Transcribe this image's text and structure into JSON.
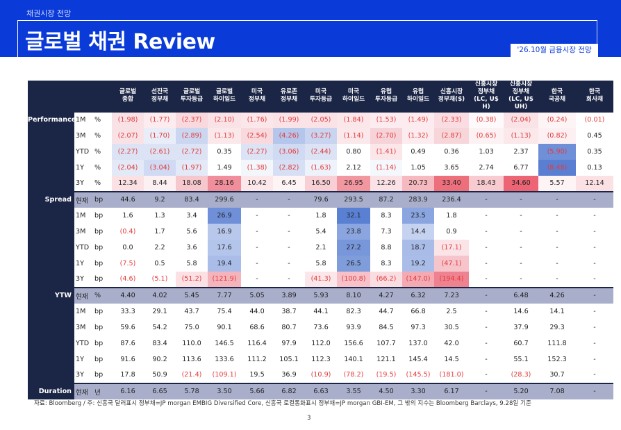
{
  "header": {
    "section": "채권시장 전망",
    "title": "글로벌 채권 Review",
    "date_badge": "'26.10월 금융시장 전망"
  },
  "table": {
    "columns": [
      "글로벌\n종합",
      "선진국\n정부채",
      "글로벌\n투자등급",
      "글로벌\n하이일드",
      "미국\n정부채",
      "유로존\n정부채",
      "미국\n투자등급",
      "미국\n하이일드",
      "유럽\n투자등급",
      "유럽\n하이일드",
      "신흥시장\n정부채($)",
      "신흥시장\n정부채\n(LC, U$ H)",
      "신흥시장\n정부채\n(LC, U$ UH)",
      "한국\n국공채",
      "한국\n회사채"
    ],
    "groups": [
      {
        "name": "Performance",
        "rows": [
          {
            "period": "1M",
            "unit": "%",
            "values": [
              "(1.98)",
              "(1.77)",
              "(2.37)",
              "(2.10)",
              "(1.76)",
              "(1.99)",
              "(2.05)",
              "(1.84)",
              "(1.53)",
              "(1.49)",
              "(2.33)",
              "(0.38)",
              "(2.04)",
              "(0.24)",
              "(0.01)"
            ]
          },
          {
            "period": "3M",
            "unit": "%",
            "values": [
              "(2.07)",
              "(1.70)",
              "(2.89)",
              "(1.13)",
              "(2.54)",
              "(4.26)",
              "(3.27)",
              "(1.14)",
              "(2.70)",
              "(1.32)",
              "(2.87)",
              "(0.65)",
              "(1.13)",
              "(0.82)",
              "0.45"
            ]
          },
          {
            "period": "YTD",
            "unit": "%",
            "values": [
              "(2.27)",
              "(2.61)",
              "(2.72)",
              "0.35",
              "(2.27)",
              "(3.06)",
              "(2.44)",
              "0.80",
              "(1.41)",
              "0.49",
              "0.36",
              "1.03",
              "2.37",
              "(5.90)",
              "0.35"
            ]
          },
          {
            "period": "1Y",
            "unit": "%",
            "values": [
              "(2.04)",
              "(3.04)",
              "(1.97)",
              "1.49",
              "(1.38)",
              "(2.82)",
              "(1.63)",
              "2.12",
              "(1.14)",
              "1.05",
              "3.65",
              "2.74",
              "6.77",
              "(8.48)",
              "0.13"
            ]
          },
          {
            "period": "3Y",
            "unit": "%",
            "values": [
              "12.34",
              "8.44",
              "18.08",
              "28.16",
              "10.42",
              "6.45",
              "16.50",
              "26.95",
              "12.26",
              "20.73",
              "33.40",
              "18.43",
              "34.60",
              "5.57",
              "12.14"
            ]
          }
        ]
      },
      {
        "name": "Spread",
        "rows": [
          {
            "period": "현재",
            "unit": "bp",
            "values": [
              "44.6",
              "9.2",
              "83.4",
              "299.6",
              "-",
              "-",
              "79.6",
              "293.5",
              "87.2",
              "283.9",
              "236.4",
              "-",
              "-",
              "-",
              "-"
            ]
          },
          {
            "period": "1M",
            "unit": "bp",
            "values": [
              "1.6",
              "1.3",
              "3.4",
              "26.9",
              "-",
              "-",
              "1.8",
              "32.1",
              "8.3",
              "23.5",
              "1.8",
              "-",
              "-",
              "-",
              "-"
            ]
          },
          {
            "period": "3M",
            "unit": "bp",
            "values": [
              "(0.4)",
              "1.7",
              "5.6",
              "16.9",
              "-",
              "-",
              "5.4",
              "23.8",
              "7.3",
              "14.4",
              "0.9",
              "-",
              "-",
              "-",
              "-"
            ]
          },
          {
            "period": "YTD",
            "unit": "bp",
            "values": [
              "0.0",
              "2.2",
              "3.6",
              "17.6",
              "-",
              "-",
              "2.1",
              "27.2",
              "8.8",
              "18.7",
              "(17.1)",
              "-",
              "-",
              "-",
              "-"
            ]
          },
          {
            "period": "1Y",
            "unit": "bp",
            "values": [
              "(7.5)",
              "0.5",
              "5.8",
              "19.4",
              "-",
              "-",
              "5.8",
              "26.5",
              "8.3",
              "19.2",
              "(47.1)",
              "-",
              "-",
              "-",
              "-"
            ]
          },
          {
            "period": "3Y",
            "unit": "bp",
            "values": [
              "(4.6)",
              "(5.1)",
              "(51.2)",
              "(121.9)",
              "-",
              "-",
              "(41.3)",
              "(100.8)",
              "(66.2)",
              "(147.0)",
              "(194.4)",
              "-",
              "-",
              "-",
              "-"
            ]
          }
        ]
      },
      {
        "name": "YTW",
        "rows": [
          {
            "period": "현재",
            "unit": "%",
            "values": [
              "4.40",
              "4.02",
              "5.45",
              "7.77",
              "5.05",
              "3.89",
              "5.93",
              "8.10",
              "4.27",
              "6.32",
              "7.23",
              "-",
              "6.48",
              "4.26",
              "-"
            ]
          },
          {
            "period": "1M",
            "unit": "bp",
            "values": [
              "33.3",
              "29.1",
              "43.7",
              "75.4",
              "44.0",
              "38.7",
              "44.1",
              "82.3",
              "44.7",
              "66.8",
              "2.5",
              "-",
              "14.6",
              "14.1",
              "-"
            ]
          },
          {
            "period": "3M",
            "unit": "bp",
            "values": [
              "59.6",
              "54.2",
              "75.0",
              "90.1",
              "68.6",
              "80.7",
              "73.6",
              "93.9",
              "84.5",
              "97.3",
              "30.5",
              "-",
              "37.9",
              "29.3",
              "-"
            ]
          },
          {
            "period": "YTD",
            "unit": "bp",
            "values": [
              "87.6",
              "83.4",
              "110.0",
              "146.5",
              "116.4",
              "97.9",
              "112.0",
              "156.6",
              "107.7",
              "137.0",
              "42.0",
              "-",
              "60.7",
              "111.8",
              "-"
            ]
          },
          {
            "period": "1Y",
            "unit": "bp",
            "values": [
              "91.6",
              "90.2",
              "113.6",
              "133.6",
              "111.2",
              "105.1",
              "112.3",
              "140.1",
              "121.1",
              "145.4",
              "14.5",
              "-",
              "55.1",
              "152.3",
              "-"
            ]
          },
          {
            "period": "3Y",
            "unit": "bp",
            "values": [
              "17.8",
              "50.9",
              "(21.4)",
              "(109.1)",
              "19.5",
              "36.9",
              "(10.9)",
              "(78.2)",
              "(19.5)",
              "(145.5)",
              "(181.0)",
              "-",
              "(28.3)",
              "30.7",
              "-"
            ]
          }
        ]
      },
      {
        "name": "Duration",
        "rows": [
          {
            "period": "현재",
            "unit": "년",
            "values": [
              "6.16",
              "6.65",
              "5.78",
              "3.50",
              "5.66",
              "6.82",
              "6.63",
              "3.55",
              "4.50",
              "3.30",
              "6.17",
              "-",
              "5.20",
              "7.08",
              "-"
            ]
          }
        ]
      }
    ],
    "cell_colors": {
      "Performance": [
        [
          "#f9e2e6",
          "#fcecef",
          "#f8d9de",
          "#fae3e7",
          "#fbe7ea",
          "#fae3e7",
          "#fae3e7",
          "#fbe7ea",
          "#fcecef",
          "#fcecef",
          "#f9dde2",
          "#fefafb",
          "#fae3e7",
          "#fdf4f5",
          "#ffffff"
        ],
        [
          "#f9e2e6",
          "#e8edf8",
          "#cbd6f0",
          "#fbe8eb",
          "#f8dade",
          "#b4c6ec",
          "#c8d4f0",
          "#fbe8eb",
          "#f6d3d8",
          "#fcecef",
          "#f7d6da",
          "#fdf2f3",
          "#fbe8eb",
          "#fdf0f2",
          "#ffffff"
        ],
        [
          "#dbe3f4",
          "#dbe3f4",
          "#dbe3f4",
          "#ffffff",
          "#dbe3f4",
          "#d0daf2",
          "#dbe3f4",
          "#ffffff",
          "#fbe7ea",
          "#ffffff",
          "#ffffff",
          "#ffffff",
          "#ffffff",
          "#6f8fd8",
          "#ffffff"
        ],
        [
          "#e3e9f6",
          "#d0daf2",
          "#e3e9f6",
          "#ffffff",
          "#f3f6fb",
          "#d6dff3",
          "#eef2fa",
          "#ffffff",
          "#f4f7fc",
          "#ffffff",
          "#ffffff",
          "#ffffff",
          "#ffffff",
          "#5a7fd2",
          "#ffffff"
        ],
        [
          "#fbe1e4",
          "#fdf0f2",
          "#f7c7ce",
          "#f18e9b",
          "#fce8eb",
          "#fef4f6",
          "#f8cfd5",
          "#f2969f",
          "#fbe2e6",
          "#f6b9c0",
          "#ee6f7c",
          "#f8cbd0",
          "#ed6474",
          "#fef4f6",
          "#fbe1e4"
        ]
      ],
      "Spread": [
        [
          "#a9aeca",
          "#a9aeca",
          "#a9aeca",
          "#a9aeca",
          "#a9aeca",
          "#a9aeca",
          "#a9aeca",
          "#a9aeca",
          "#a9aeca",
          "#a9aeca",
          "#a9aeca",
          "#a9aeca",
          "#a9aeca",
          "#a9aeca",
          "#a9aeca"
        ],
        [
          "#ffffff",
          "#ffffff",
          "#ffffff",
          "#6f90d8",
          "#ffffff",
          "#ffffff",
          "#ffffff",
          "#5a80d3",
          "#ffffff",
          "#8aa5df",
          "#ffffff",
          "#ffffff",
          "#ffffff",
          "#ffffff",
          "#ffffff"
        ],
        [
          "#ffffff",
          "#ffffff",
          "#ffffff",
          "#b8c8ec",
          "#ffffff",
          "#ffffff",
          "#ffffff",
          "#8aa5df",
          "#ffffff",
          "#c6d3f0",
          "#ffffff",
          "#ffffff",
          "#ffffff",
          "#ffffff",
          "#ffffff"
        ],
        [
          "#ffffff",
          "#ffffff",
          "#ffffff",
          "#b4c5eb",
          "#ffffff",
          "#ffffff",
          "#ffffff",
          "#7797da",
          "#ffffff",
          "#a9bce8",
          "#fbe4e7",
          "#ffffff",
          "#ffffff",
          "#ffffff",
          "#ffffff"
        ],
        [
          "#ffffff",
          "#ffffff",
          "#ffffff",
          "#aabde8",
          "#ffffff",
          "#ffffff",
          "#ffffff",
          "#7f9cdb",
          "#ffffff",
          "#aabde8",
          "#f6c5cb",
          "#ffffff",
          "#ffffff",
          "#ffffff",
          "#ffffff"
        ],
        [
          "#ffffff",
          "#ffffff",
          "#fbe1e4",
          "#f4b4bc",
          "#ffffff",
          "#ffffff",
          "#fbe6e9",
          "#f6c1c8",
          "#fadde1",
          "#f3aab3",
          "#ef8290",
          "#ffffff",
          "#ffffff",
          "#ffffff",
          "#ffffff"
        ]
      ]
    }
  },
  "footnote": "자료: Bloomberg / 주: 신흥국 달러표시 정부채=JP morgan EMBIG Diversified Core, 신흥국 로컬통화표시 정부채=JP morgan GBI-EM, 그 밖의 지수는 Bloomberg Barclays, 9.28일 기준",
  "page_number": "3"
}
